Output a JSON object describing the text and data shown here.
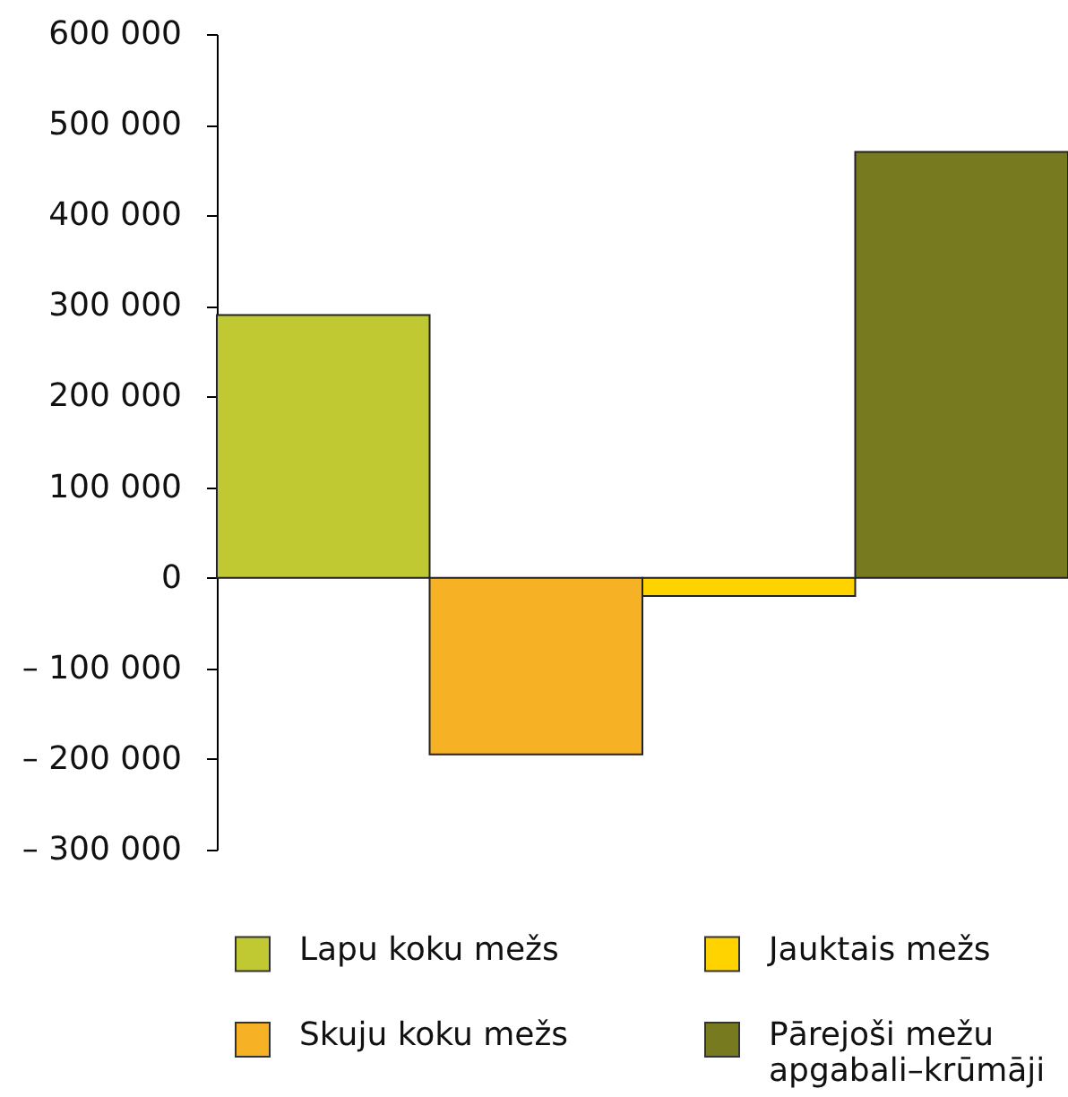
{
  "chart_data": {
    "type": "bar",
    "categories": [
      null
    ],
    "series": [
      {
        "name": "Lapu koku mežs",
        "color": "#c0c932",
        "values": [
          290000
        ]
      },
      {
        "name": "Skuju koku mežs",
        "color": "#f7b124",
        "values": [
          -195000
        ]
      },
      {
        "name": "Jauktais mežs",
        "color": "#ffd300",
        "values": [
          -20000
        ]
      },
      {
        "name": "Pārejoši mežu apgabali–krūmāji",
        "color": "#787a20",
        "values": [
          470000
        ]
      }
    ],
    "ylim": [
      -300000,
      600000
    ],
    "yticks": [
      {
        "value": -300000,
        "label": "– 300 000"
      },
      {
        "value": -200000,
        "label": "– 200 000"
      },
      {
        "value": -100000,
        "label": "– 100 000"
      },
      0,
      {
        "value": 100000,
        "label": "100 000"
      },
      {
        "value": 200000,
        "label": "200 000"
      },
      {
        "value": 300000,
        "label": "300 000"
      },
      {
        "value": 400000,
        "label": "400 000"
      },
      {
        "value": 500000,
        "label": "500 000"
      },
      {
        "value": 600000,
        "label": "600 000"
      }
    ],
    "tick_labels": "y",
    "grid": false,
    "legend": "bottom"
  }
}
